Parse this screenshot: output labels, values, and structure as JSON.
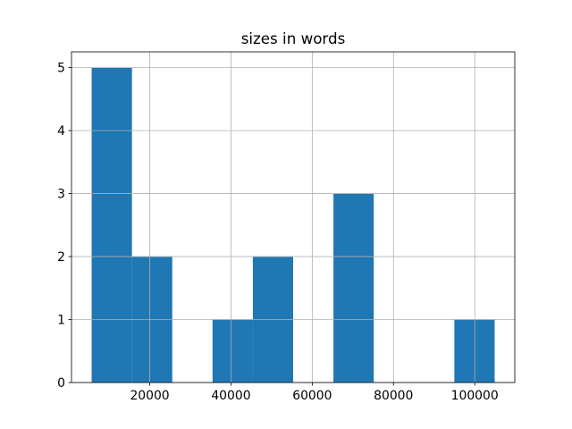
{
  "chart_data": {
    "type": "histogram",
    "title": "sizes in words",
    "bins": [
      5700,
      15620,
      25540,
      35460,
      45380,
      55300,
      65220,
      75140,
      85060,
      94980,
      104900
    ],
    "counts": [
      5,
      2,
      0,
      1,
      2,
      0,
      3,
      0,
      0,
      1
    ],
    "color": "#1f77b4",
    "xlim": [
      740,
      109860
    ],
    "xticks": [
      20000,
      40000,
      60000,
      80000,
      100000
    ],
    "ylim": [
      0,
      5.25
    ],
    "yticks": [
      0,
      1,
      2,
      3,
      4,
      5
    ],
    "grid": true
  }
}
